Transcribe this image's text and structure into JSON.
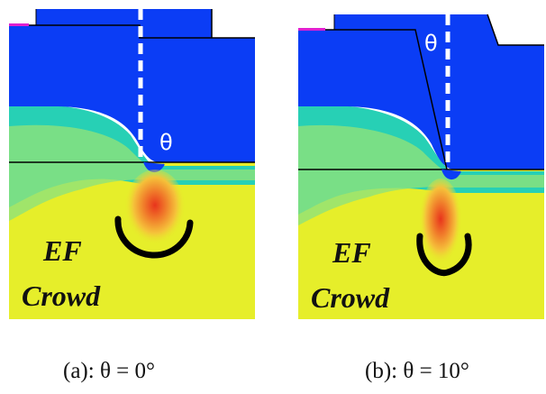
{
  "figure": {
    "panels": [
      {
        "id": "a",
        "angle_symbol": "θ",
        "crowd_label_line1": "EF",
        "crowd_label_line2": "Crowd",
        "caption": "(a): θ = 0°"
      },
      {
        "id": "b",
        "angle_symbol": "θ",
        "crowd_label_line1": "EF",
        "crowd_label_line2": "Crowd",
        "caption": "(b): θ = 10°"
      }
    ],
    "colors": {
      "upper_region": "#0b3df5",
      "lower_region": "#e6ee2a",
      "transition": "#27d0b5",
      "hotspot": "#e8341c",
      "edge_accent": "#e020d0"
    }
  }
}
